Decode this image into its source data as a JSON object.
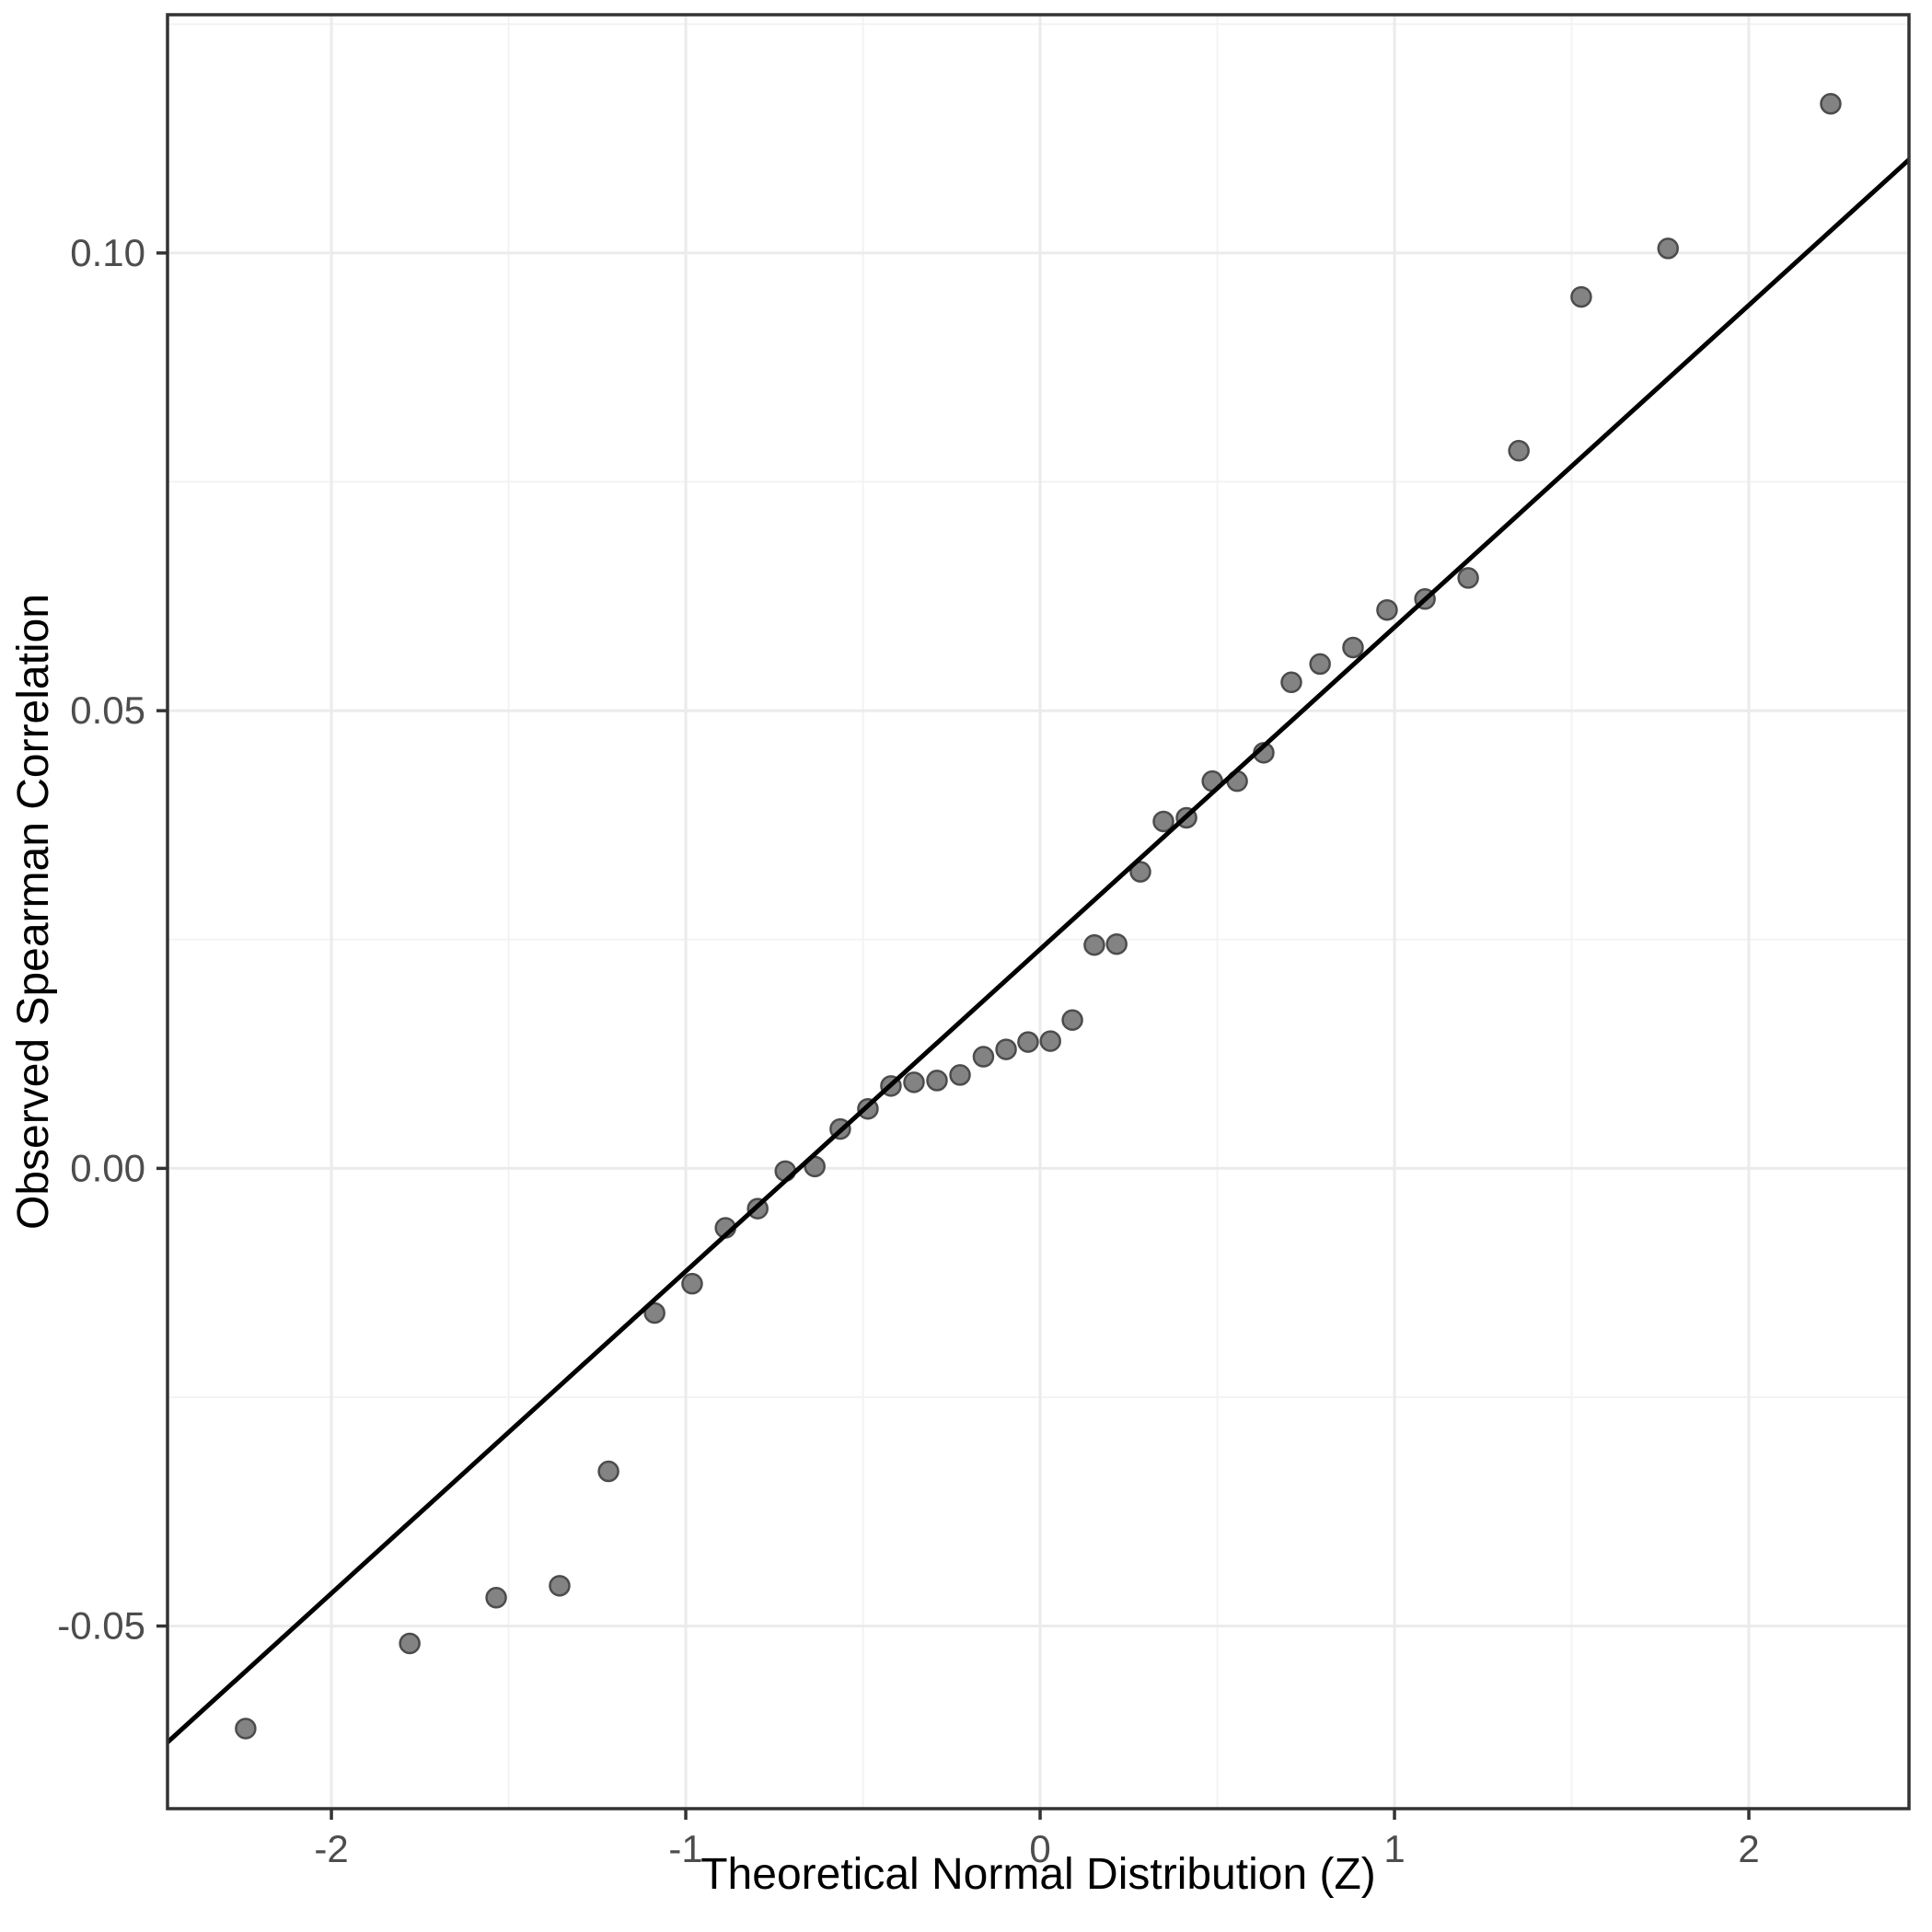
{
  "chart_data": {
    "type": "scatter",
    "title": "",
    "xlabel": "Theoretical Normal Distribution (Z)",
    "ylabel": "Observed Spearman Correlation",
    "xlim": [
      -2.4625,
      2.4519
    ],
    "ylim": [
      -0.06995,
      0.12603
    ],
    "grid": true,
    "legend": false,
    "x_ticks": [
      {
        "value": -2,
        "label": "-2"
      },
      {
        "value": -1,
        "label": "-1"
      },
      {
        "value": 0,
        "label": "0"
      },
      {
        "value": 1,
        "label": "1"
      },
      {
        "value": 2,
        "label": "2"
      }
    ],
    "y_ticks": [
      {
        "value": -0.05,
        "label": "-0.05"
      },
      {
        "value": 0.0,
        "label": "0.00"
      },
      {
        "value": 0.05,
        "label": "0.05"
      },
      {
        "value": 0.1,
        "label": "0.10"
      }
    ],
    "x_minor_ticks": [
      -1.5,
      -0.5,
      0.5,
      1.5
    ],
    "y_minor_ticks": [
      -0.025,
      0.025,
      0.075,
      0.125
    ],
    "series": [
      {
        "name": "observed-spearman-quantiles",
        "type": "points",
        "points": [
          [
            -2.242,
            -0.0612
          ],
          [
            -1.779,
            -0.0519
          ],
          [
            -1.535,
            -0.0469
          ],
          [
            -1.356,
            -0.0456
          ],
          [
            -1.218,
            -0.0331
          ],
          [
            -1.088,
            -0.0158
          ],
          [
            -0.982,
            -0.0126
          ],
          [
            -0.888,
            -0.0065
          ],
          [
            -0.797,
            -0.0044
          ],
          [
            -0.719,
            -0.0003
          ],
          [
            -0.636,
            0.0002
          ],
          [
            -0.564,
            0.0043
          ],
          [
            -0.486,
            0.0065
          ],
          [
            -0.421,
            0.009
          ],
          [
            -0.356,
            0.0094
          ],
          [
            -0.291,
            0.0096
          ],
          [
            -0.226,
            0.0102
          ],
          [
            -0.16,
            0.0122
          ],
          [
            -0.096,
            0.013
          ],
          [
            -0.034,
            0.0138
          ],
          [
            0.029,
            0.0139
          ],
          [
            0.091,
            0.0162
          ],
          [
            0.153,
            0.0244
          ],
          [
            0.216,
            0.0245
          ],
          [
            0.283,
            0.0324
          ],
          [
            0.348,
            0.0379
          ],
          [
            0.413,
            0.0383
          ],
          [
            0.486,
            0.0423
          ],
          [
            0.556,
            0.0423
          ],
          [
            0.631,
            0.0454
          ],
          [
            0.709,
            0.0531
          ],
          [
            0.79,
            0.0551
          ],
          [
            0.883,
            0.0569
          ],
          [
            0.979,
            0.061
          ],
          [
            1.086,
            0.0622
          ],
          [
            1.208,
            0.0645
          ],
          [
            1.351,
            0.0784
          ],
          [
            1.527,
            0.0952
          ],
          [
            1.772,
            0.1005
          ],
          [
            2.231,
            0.1163
          ]
        ]
      },
      {
        "name": "qq-reference-line",
        "type": "line",
        "from": [
          -2.4625,
          -0.0627
        ],
        "to": [
          2.4519,
          0.1102
        ]
      }
    ],
    "colors": {
      "background": "#ffffff",
      "point_fill": "#7c7c7c",
      "point_stroke": "#4c4c4c",
      "line": "#000000",
      "grid_major": "#ebebeb",
      "grid_minor": "#f3f3f3",
      "panel_border": "#333333",
      "tick_mark": "#333333",
      "tick_label": "#4d4d4d",
      "axis_title": "#000000"
    }
  }
}
